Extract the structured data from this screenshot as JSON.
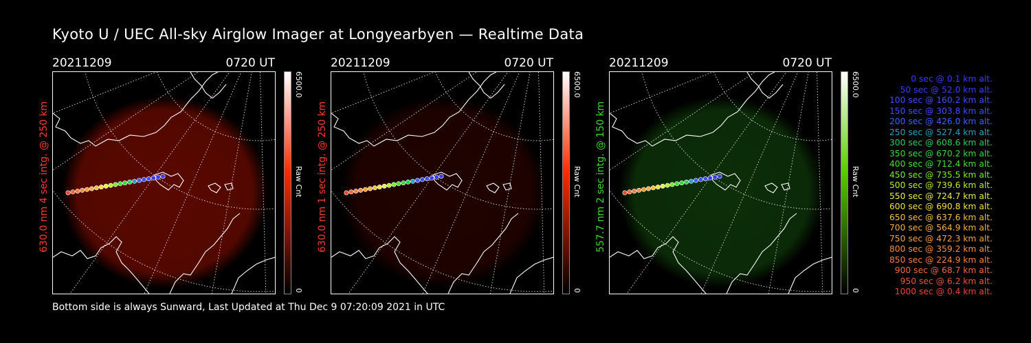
{
  "title": "Kyoto U / UEC All-sky Airglow Imager at Longyearbyen — Realtime Data",
  "footer": "Bottom side is always Sunward, Last Updated at Thu Dec  9 07:20:09 2021 in UTC",
  "colorbar_max": "6500.0",
  "colorbar_min": "0",
  "colorbar_label": "Raw Cnt",
  "panels": [
    {
      "date": "20211209",
      "time": "0720 UT",
      "side_label": "630.0 nm 4 sec intg. @ 250 km",
      "label_color": "#ff3b2f",
      "glow_color": "#6a0a00",
      "glow_opacity": 0.85,
      "bar_color": "#ff2a00"
    },
    {
      "date": "20211209",
      "time": "0720 UT",
      "side_label": "630.0 nm 1 sec intg. @ 250 km",
      "label_color": "#ff3b2f",
      "glow_color": "#3a0500",
      "glow_opacity": 0.55,
      "bar_color": "#ff2a00"
    },
    {
      "date": "20211209",
      "time": "0720 UT",
      "side_label": "557.7 nm 2 sec intg. @ 150 km",
      "label_color": "#3fd92b",
      "glow_color": "#0f3a0a",
      "glow_opacity": 0.8,
      "bar_color": "#5acc00"
    }
  ],
  "legend": [
    {
      "text": "0 sec @   0.1 km alt.",
      "color": "#3a3aff"
    },
    {
      "text": "50 sec @  52.0 km alt.",
      "color": "#3a3aff"
    },
    {
      "text": "100 sec @ 160.2 km alt.",
      "color": "#3f4dff"
    },
    {
      "text": "150 sec @ 303.8 km alt.",
      "color": "#3f4dff"
    },
    {
      "text": "200 sec @ 426.0 km alt.",
      "color": "#3a62ff"
    },
    {
      "text": "250 sec @ 527.4 km alt.",
      "color": "#2aa0c8"
    },
    {
      "text": "300 sec @ 608.6 km alt.",
      "color": "#2ecc5a"
    },
    {
      "text": "350 sec @ 670.2 km alt.",
      "color": "#33dd33"
    },
    {
      "text": "400 sec @ 712.4 km alt.",
      "color": "#44e033"
    },
    {
      "text": "450 sec @ 735.5 km alt.",
      "color": "#77ee22"
    },
    {
      "text": "500 sec @ 739.6 km alt.",
      "color": "#b8f030"
    },
    {
      "text": "550 sec @ 724.7 km alt.",
      "color": "#e8f040"
    },
    {
      "text": "600 sec @ 690.8 km alt.",
      "color": "#f2e040"
    },
    {
      "text": "650 sec @ 637.6 km alt.",
      "color": "#f5c040"
    },
    {
      "text": "700 sec @ 564.9 km alt.",
      "color": "#f5b040"
    },
    {
      "text": "750 sec @ 472.3 km alt.",
      "color": "#f5a040"
    },
    {
      "text": "800 sec @ 359.2 km alt.",
      "color": "#f59040"
    },
    {
      "text": "850 sec @ 224.9 km alt.",
      "color": "#f58040"
    },
    {
      "text": "900 sec @  68.7 km alt.",
      "color": "#f06a3a"
    },
    {
      "text": "950 sec @   6.2 km alt.",
      "color": "#ee5533"
    },
    {
      "text": "1000 sec @   0.4 km alt.",
      "color": "#ee4433"
    }
  ]
}
